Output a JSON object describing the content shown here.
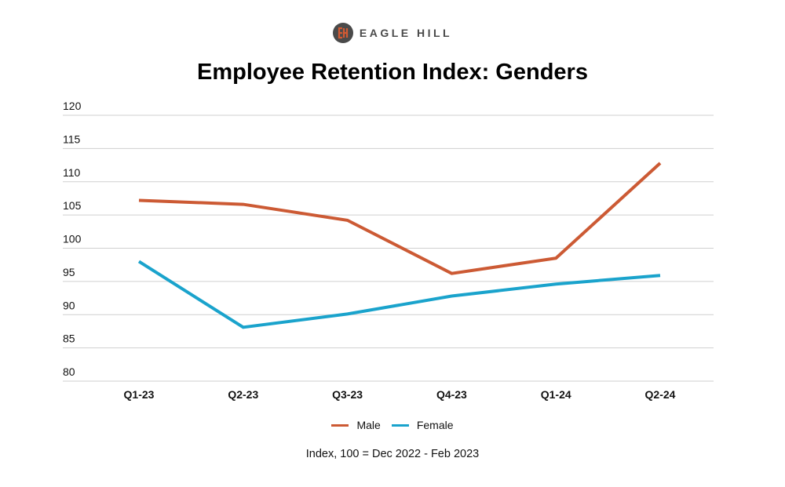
{
  "brand": {
    "name": "EAGLE HILL",
    "logo_icon": "eagle-hill-logo-icon",
    "logo_color": "#d35a33",
    "logo_bg": "#4a4a4a"
  },
  "chart_data": {
    "type": "line",
    "title": "Employee Retention Index: Genders",
    "xlabel": "",
    "ylabel": "",
    "categories": [
      "Q1-23",
      "Q2-23",
      "Q3-23",
      "Q4-23",
      "Q1-24",
      "Q2-24"
    ],
    "yticks": [
      80,
      85,
      90,
      95,
      100,
      105,
      110,
      115,
      120
    ],
    "ylim": [
      80,
      120
    ],
    "grid": true,
    "legend_position": "bottom",
    "series": [
      {
        "name": "Male",
        "color": "#cc5a34",
        "values": [
          107.2,
          106.6,
          104.2,
          96.2,
          98.5,
          112.8
        ]
      },
      {
        "name": "Female",
        "color": "#1aa3cc",
        "values": [
          98.0,
          88.1,
          90.1,
          92.8,
          94.6,
          95.9
        ]
      }
    ],
    "annotation": "Index, 100 = Dec 2022 - Feb 2023"
  }
}
